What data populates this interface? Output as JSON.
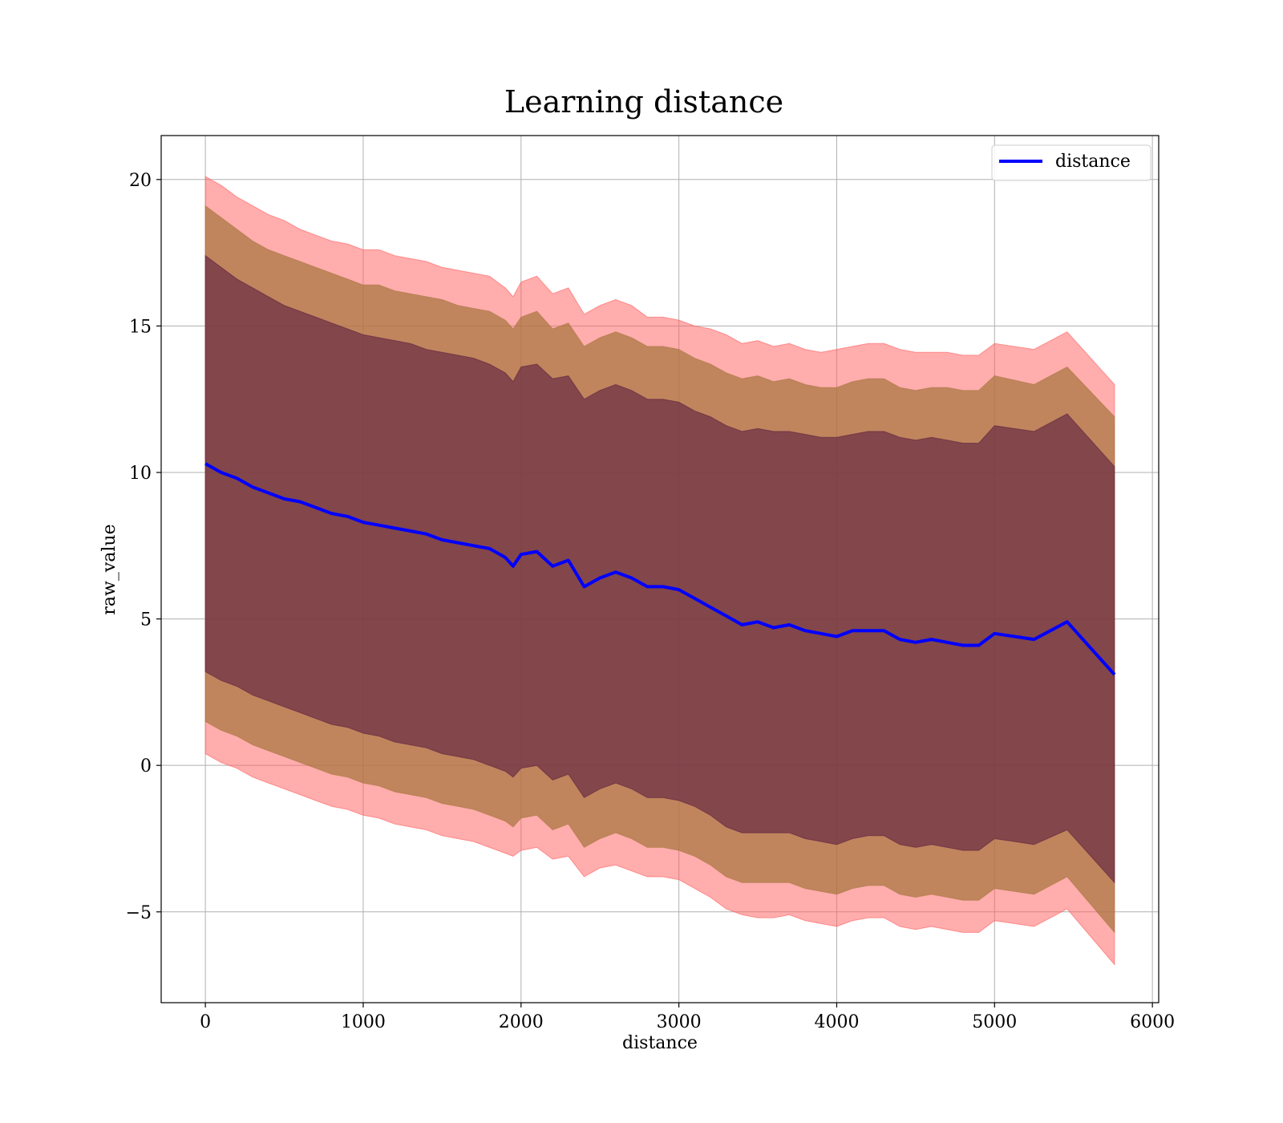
{
  "chart_data": {
    "type": "line",
    "title": "Learning distance",
    "xlabel": "distance",
    "ylabel": "raw_value",
    "xlim": [
      -280,
      6040
    ],
    "ylim": [
      -8.1,
      21.5
    ],
    "xticks": [
      0,
      1000,
      2000,
      3000,
      4000,
      5000,
      6000
    ],
    "xtick_labels": [
      "0",
      "1000",
      "2000",
      "3000",
      "4000",
      "5000",
      "6000"
    ],
    "yticks": [
      -5,
      0,
      5,
      10,
      15,
      20
    ],
    "ytick_labels": [
      "−5",
      "0",
      "5",
      "10",
      "15",
      "20"
    ],
    "grid": true,
    "legend": {
      "placement": "top-right",
      "entries": [
        {
          "label": "distance",
          "color": "#0000ff"
        }
      ]
    },
    "colors": {
      "line": "#0000ff",
      "band_outer": "#ff5c5c",
      "band_middle": "#a8763f",
      "band_inner": "#5e2040"
    },
    "series": [
      {
        "name": "distance",
        "x": [
          0,
          100,
          200,
          300,
          400,
          500,
          600,
          700,
          800,
          900,
          1000,
          1100,
          1200,
          1300,
          1400,
          1500,
          1600,
          1700,
          1800,
          1900,
          1950,
          2000,
          2100,
          2200,
          2300,
          2400,
          2500,
          2600,
          2700,
          2800,
          2900,
          3000,
          3100,
          3200,
          3300,
          3400,
          3500,
          3600,
          3700,
          3800,
          3900,
          4000,
          4100,
          4200,
          4300,
          4400,
          4500,
          4600,
          4700,
          4800,
          4900,
          5000,
          5250,
          5460,
          5760
        ],
        "y": [
          10.3,
          10.0,
          9.8,
          9.5,
          9.3,
          9.1,
          9.0,
          8.8,
          8.6,
          8.5,
          8.3,
          8.2,
          8.1,
          8.0,
          7.9,
          7.7,
          7.6,
          7.5,
          7.4,
          7.1,
          6.8,
          7.2,
          7.3,
          6.8,
          7.0,
          6.1,
          6.4,
          6.6,
          6.4,
          6.1,
          6.1,
          6.0,
          5.7,
          5.4,
          5.1,
          4.8,
          4.9,
          4.7,
          4.8,
          4.6,
          4.5,
          4.4,
          4.6,
          4.6,
          4.6,
          4.3,
          4.2,
          4.3,
          4.2,
          4.1,
          4.1,
          4.5,
          4.3,
          4.9,
          3.1
        ]
      }
    ],
    "bands": [
      {
        "layer": "outer",
        "upper": [
          20.1,
          19.8,
          19.4,
          19.1,
          18.8,
          18.6,
          18.3,
          18.1,
          17.9,
          17.8,
          17.6,
          17.6,
          17.4,
          17.3,
          17.2,
          17.0,
          16.9,
          16.8,
          16.7,
          16.3,
          16.0,
          16.5,
          16.7,
          16.1,
          16.3,
          15.4,
          15.7,
          15.9,
          15.7,
          15.3,
          15.3,
          15.2,
          15.0,
          14.9,
          14.7,
          14.4,
          14.5,
          14.3,
          14.4,
          14.2,
          14.1,
          14.2,
          14.3,
          14.4,
          14.4,
          14.2,
          14.1,
          14.1,
          14.1,
          14.0,
          14.0,
          14.4,
          14.2,
          14.8,
          13.0
        ],
        "lower": [
          0.4,
          0.1,
          -0.1,
          -0.4,
          -0.6,
          -0.8,
          -1.0,
          -1.2,
          -1.4,
          -1.5,
          -1.7,
          -1.8,
          -2.0,
          -2.1,
          -2.2,
          -2.4,
          -2.5,
          -2.6,
          -2.8,
          -3.0,
          -3.1,
          -2.9,
          -2.8,
          -3.2,
          -3.1,
          -3.8,
          -3.5,
          -3.4,
          -3.6,
          -3.8,
          -3.8,
          -3.9,
          -4.2,
          -4.5,
          -4.9,
          -5.1,
          -5.2,
          -5.2,
          -5.1,
          -5.3,
          -5.4,
          -5.5,
          -5.3,
          -5.2,
          -5.2,
          -5.5,
          -5.6,
          -5.5,
          -5.6,
          -5.7,
          -5.7,
          -5.3,
          -5.5,
          -4.9,
          -6.8
        ]
      },
      {
        "layer": "middle",
        "upper": [
          19.1,
          18.7,
          18.3,
          17.9,
          17.6,
          17.4,
          17.2,
          17.0,
          16.8,
          16.6,
          16.4,
          16.4,
          16.2,
          16.1,
          16.0,
          15.9,
          15.7,
          15.6,
          15.5,
          15.2,
          14.9,
          15.3,
          15.5,
          14.9,
          15.1,
          14.3,
          14.6,
          14.8,
          14.6,
          14.3,
          14.3,
          14.2,
          13.9,
          13.7,
          13.4,
          13.2,
          13.3,
          13.1,
          13.2,
          13.0,
          12.9,
          12.9,
          13.1,
          13.2,
          13.2,
          12.9,
          12.8,
          12.9,
          12.9,
          12.8,
          12.8,
          13.3,
          13.0,
          13.6,
          11.9
        ],
        "lower": [
          1.5,
          1.2,
          1.0,
          0.7,
          0.5,
          0.3,
          0.1,
          -0.1,
          -0.3,
          -0.4,
          -0.6,
          -0.7,
          -0.9,
          -1.0,
          -1.1,
          -1.3,
          -1.4,
          -1.5,
          -1.7,
          -1.9,
          -2.1,
          -1.8,
          -1.7,
          -2.2,
          -2.0,
          -2.8,
          -2.5,
          -2.3,
          -2.5,
          -2.8,
          -2.8,
          -2.9,
          -3.1,
          -3.4,
          -3.8,
          -4.0,
          -4.0,
          -4.0,
          -4.0,
          -4.2,
          -4.3,
          -4.4,
          -4.2,
          -4.1,
          -4.1,
          -4.4,
          -4.5,
          -4.4,
          -4.5,
          -4.6,
          -4.6,
          -4.2,
          -4.4,
          -3.8,
          -5.7
        ]
      },
      {
        "layer": "inner",
        "upper": [
          17.4,
          17.0,
          16.6,
          16.3,
          16.0,
          15.7,
          15.5,
          15.3,
          15.1,
          14.9,
          14.7,
          14.6,
          14.5,
          14.4,
          14.2,
          14.1,
          14.0,
          13.9,
          13.7,
          13.4,
          13.1,
          13.6,
          13.7,
          13.2,
          13.3,
          12.5,
          12.8,
          13.0,
          12.8,
          12.5,
          12.5,
          12.4,
          12.1,
          11.9,
          11.6,
          11.4,
          11.5,
          11.4,
          11.4,
          11.3,
          11.2,
          11.2,
          11.3,
          11.4,
          11.4,
          11.2,
          11.1,
          11.2,
          11.1,
          11.0,
          11.0,
          11.6,
          11.4,
          12.0,
          10.2
        ],
        "lower": [
          3.2,
          2.9,
          2.7,
          2.4,
          2.2,
          2.0,
          1.8,
          1.6,
          1.4,
          1.3,
          1.1,
          1.0,
          0.8,
          0.7,
          0.6,
          0.4,
          0.3,
          0.2,
          0.0,
          -0.2,
          -0.4,
          -0.1,
          0.0,
          -0.5,
          -0.3,
          -1.1,
          -0.8,
          -0.6,
          -0.8,
          -1.1,
          -1.1,
          -1.2,
          -1.4,
          -1.7,
          -2.1,
          -2.3,
          -2.3,
          -2.3,
          -2.3,
          -2.5,
          -2.6,
          -2.7,
          -2.5,
          -2.4,
          -2.4,
          -2.7,
          -2.8,
          -2.7,
          -2.8,
          -2.9,
          -2.9,
          -2.5,
          -2.7,
          -2.2,
          -4.0
        ]
      }
    ]
  }
}
